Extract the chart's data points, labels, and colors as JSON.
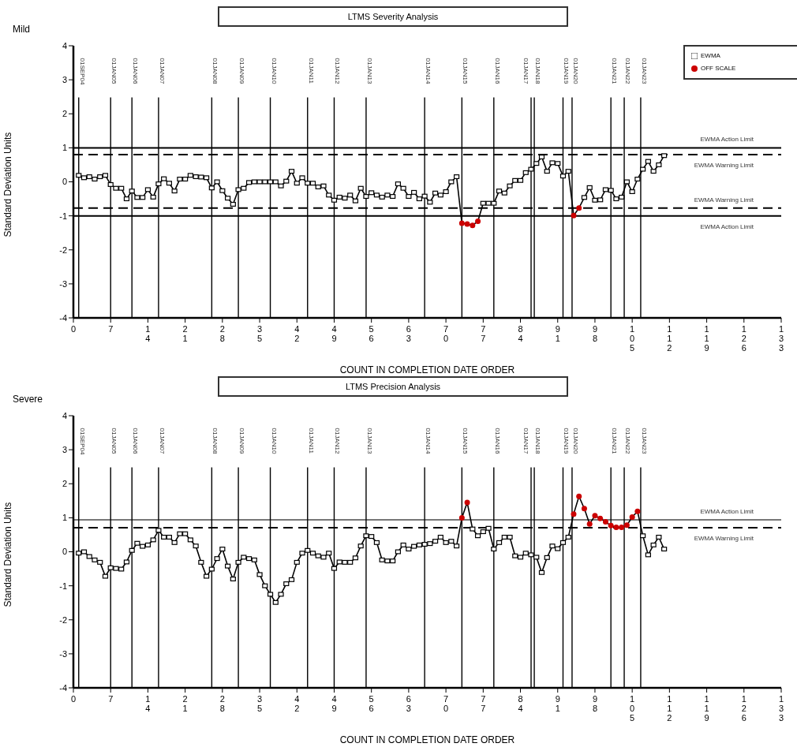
{
  "chart_data": [
    {
      "type": "line",
      "title": "LTMS Severity Analysis",
      "xlabel": "COUNT IN COMPLETION DATE ORDER",
      "ylabel": "Standard Deviation Units",
      "annotations": [
        "Mild"
      ],
      "xlim": [
        0,
        133
      ],
      "xticks": [
        0,
        7,
        14,
        21,
        28,
        35,
        42,
        49,
        56,
        63,
        70,
        77,
        84,
        91,
        98,
        105,
        112,
        119,
        126,
        133
      ],
      "ylim": [
        -4,
        4
      ],
      "yticks": [
        -4,
        -3,
        -2,
        -1,
        0,
        1,
        2,
        3,
        4
      ],
      "legend": "top right",
      "grid": false,
      "series": [
        {
          "name": "EWMA",
          "type": "line",
          "color": "#000000",
          "marker": "square",
          "x": [
            1,
            2,
            3,
            4,
            5,
            6,
            7,
            8,
            9,
            10,
            11,
            12,
            13,
            14,
            15,
            16,
            17,
            18,
            19,
            20,
            21,
            22,
            23,
            24,
            25,
            26,
            27,
            28,
            29,
            30,
            31,
            32,
            33,
            34,
            35,
            36,
            37,
            38,
            39,
            40,
            41,
            42,
            43,
            44,
            45,
            46,
            47,
            48,
            49,
            50,
            51,
            52,
            53,
            54,
            55,
            56,
            57,
            58,
            59,
            60,
            61,
            62,
            63,
            64,
            65,
            66,
            67,
            68,
            69,
            70,
            71,
            72,
            73,
            74,
            75,
            76,
            77,
            78,
            79,
            80,
            81,
            82,
            83,
            84,
            85,
            86,
            87,
            88,
            89,
            90,
            91,
            92,
            93,
            94,
            95,
            96,
            97,
            98,
            99,
            100,
            101,
            102,
            103,
            104,
            105,
            106,
            107,
            108,
            109,
            110,
            111
          ],
          "values": [
            0.19,
            0.12,
            0.15,
            0.08,
            0.15,
            0.19,
            -0.08,
            -0.19,
            -0.19,
            -0.5,
            -0.27,
            -0.46,
            -0.46,
            -0.23,
            -0.45,
            -0.06,
            0.09,
            -0.04,
            -0.27,
            0.08,
            0.08,
            0.19,
            0.15,
            0.14,
            0.12,
            -0.18,
            0,
            -0.26,
            -0.48,
            -0.66,
            -0.23,
            -0.19,
            -0.02,
            0,
            0,
            0,
            0,
            0,
            -0.12,
            0.02,
            0.31,
            -0.04,
            0.12,
            -0.04,
            -0.04,
            -0.15,
            -0.12,
            -0.39,
            -0.54,
            -0.45,
            -0.48,
            -0.39,
            -0.56,
            -0.19,
            -0.43,
            -0.32,
            -0.39,
            -0.45,
            -0.39,
            -0.43,
            -0.06,
            -0.19,
            -0.43,
            -0.31,
            -0.5,
            -0.42,
            -0.6,
            -0.33,
            -0.39,
            -0.29,
            0,
            0.15,
            -1.22,
            -1.24,
            -1.28,
            -1.16,
            -0.63,
            -0.63,
            -0.63,
            -0.27,
            -0.33,
            -0.12,
            0.04,
            0.04,
            0.27,
            0.37,
            0.54,
            0.73,
            0.31,
            0.56,
            0.54,
            0.17,
            0.31,
            -0.99,
            -0.77,
            -0.46,
            -0.17,
            -0.54,
            -0.53,
            -0.23,
            -0.25,
            -0.5,
            -0.45,
            0,
            -0.29,
            0.08,
            0.37,
            0.6,
            0.31,
            0.5,
            0.77
          ]
        },
        {
          "name": "OFF SCALE",
          "type": "scatter",
          "color": "#cc0000",
          "marker": "circle",
          "x": [
            73,
            74,
            75,
            76,
            94,
            95
          ],
          "values": [
            -1.22,
            -1.24,
            -1.28,
            -1.16,
            -0.99,
            -0.77
          ]
        }
      ],
      "ref_lines": [
        {
          "axis": "y",
          "value": 1,
          "label": "EWMA Action Limit",
          "line_style": "solid",
          "color": "#000000"
        },
        {
          "axis": "y",
          "value": 0.8,
          "label": "EWMA Warning Limit",
          "line_style": "dashed",
          "color": "#000000"
        },
        {
          "axis": "y",
          "value": -0.77,
          "label": "EWMA Warning Limit",
          "line_style": "dashed",
          "color": "#000000"
        },
        {
          "axis": "y",
          "value": -1,
          "label": "EWMA Action Limit",
          "line_style": "solid",
          "color": "#000000"
        },
        {
          "axis": "x",
          "value": 1,
          "label": "01SEP04"
        },
        {
          "axis": "x",
          "value": 7,
          "label": "01JAN05"
        },
        {
          "axis": "x",
          "value": 11,
          "label": "01JAN06"
        },
        {
          "axis": "x",
          "value": 16,
          "label": "01JAN07"
        },
        {
          "axis": "x",
          "value": 26,
          "label": "01JAN08"
        },
        {
          "axis": "x",
          "value": 31,
          "label": "01JAN09"
        },
        {
          "axis": "x",
          "value": 37,
          "label": "01JAN10"
        },
        {
          "axis": "x",
          "value": 44,
          "label": "01JAN11"
        },
        {
          "axis": "x",
          "value": 49,
          "label": "01JAN12"
        },
        {
          "axis": "x",
          "value": 55,
          "label": "01JAN13"
        },
        {
          "axis": "x",
          "value": 66,
          "label": "01JAN14"
        },
        {
          "axis": "x",
          "value": 73,
          "label": "01JAN15"
        },
        {
          "axis": "x",
          "value": 79,
          "label": "01JAN16"
        },
        {
          "axis": "x",
          "value": 86,
          "label": "01JAN17"
        },
        {
          "axis": "x",
          "value": 86.6,
          "label": "01JAN18"
        },
        {
          "axis": "x",
          "value": 92,
          "label": "01JAN19"
        },
        {
          "axis": "x",
          "value": 93.7,
          "label": "01JAN20"
        },
        {
          "axis": "x",
          "value": 101,
          "label": "01JAN21"
        },
        {
          "axis": "x",
          "value": 103.5,
          "label": "01JAN22"
        },
        {
          "axis": "x",
          "value": 106.6,
          "label": "01JAN23"
        }
      ]
    },
    {
      "type": "line",
      "title": "LTMS Precision Analysis",
      "xlabel": "COUNT IN COMPLETION DATE ORDER",
      "ylabel": "Standard Deviation Units",
      "annotations": [
        "Severe"
      ],
      "xlim": [
        0,
        133
      ],
      "xticks": [
        0,
        7,
        14,
        21,
        28,
        35,
        42,
        49,
        56,
        63,
        70,
        77,
        84,
        91,
        98,
        105,
        112,
        119,
        126,
        133
      ],
      "ylim": [
        -4,
        4
      ],
      "yticks": [
        -4,
        -3,
        -2,
        -1,
        0,
        1,
        2,
        3,
        4
      ],
      "grid": false,
      "series": [
        {
          "type": "line",
          "color": "#000000",
          "marker": "square",
          "x": [
            1,
            2,
            3,
            4,
            5,
            6,
            7,
            8,
            9,
            10,
            11,
            12,
            13,
            14,
            15,
            16,
            17,
            18,
            19,
            20,
            21,
            22,
            23,
            24,
            25,
            26,
            27,
            28,
            29,
            30,
            31,
            32,
            33,
            34,
            35,
            36,
            37,
            38,
            39,
            40,
            41,
            42,
            43,
            44,
            45,
            46,
            47,
            48,
            49,
            50,
            51,
            52,
            53,
            54,
            55,
            56,
            57,
            58,
            59,
            60,
            61,
            62,
            63,
            64,
            65,
            66,
            67,
            68,
            69,
            70,
            71,
            72,
            73,
            74,
            75,
            76,
            77,
            78,
            79,
            80,
            81,
            82,
            83,
            84,
            85,
            86,
            87,
            88,
            89,
            90,
            91,
            92,
            93,
            94,
            95,
            96,
            97,
            98,
            99,
            100,
            101,
            102,
            103,
            104,
            105,
            106,
            107,
            108,
            109,
            110,
            111
          ],
          "values": [
            -0.04,
            0,
            -0.14,
            -0.24,
            -0.31,
            -0.72,
            -0.47,
            -0.49,
            -0.51,
            -0.3,
            0.04,
            0.25,
            0.16,
            0.2,
            0.35,
            0.63,
            0.43,
            0.43,
            0.27,
            0.53,
            0.53,
            0.35,
            0.17,
            -0.31,
            -0.72,
            -0.51,
            -0.2,
            0.08,
            -0.42,
            -0.8,
            -0.31,
            -0.16,
            -0.2,
            -0.24,
            -0.67,
            -1,
            -1.25,
            -1.49,
            -1.25,
            -0.94,
            -0.82,
            -0.31,
            -0.04,
            0.04,
            -0.04,
            -0.12,
            -0.16,
            -0.04,
            -0.49,
            -0.3,
            -0.31,
            -0.31,
            -0.18,
            0.17,
            0.47,
            0.45,
            0.27,
            -0.24,
            -0.27,
            -0.27,
            0,
            0.2,
            0.08,
            0.16,
            0.2,
            0.22,
            0.24,
            0.31,
            0.43,
            0.27,
            0.31,
            0.17,
            1,
            1.45,
            0.67,
            0.47,
            0.59,
            0.69,
            0.08,
            0.27,
            0.43,
            0.43,
            -0.12,
            -0.16,
            -0.04,
            -0.09,
            -0.16,
            -0.61,
            -0.17,
            0.17,
            0.09,
            0.27,
            0.43,
            1.11,
            1.63,
            1.27,
            0.82,
            1.06,
            0.98,
            0.88,
            0.77,
            0.72,
            0.72,
            0.78,
            1.02,
            1.19,
            0.47,
            -0.09,
            0.2,
            0.43,
            0.08
          ]
        },
        {
          "type": "scatter",
          "color": "#cc0000",
          "marker": "circle",
          "x": [
            73,
            74,
            94,
            95,
            96,
            97,
            98,
            99,
            100,
            101,
            102,
            103,
            104,
            105,
            106
          ],
          "values": [
            1,
            1.45,
            1.11,
            1.63,
            1.27,
            0.82,
            1.06,
            0.98,
            0.88,
            0.77,
            0.72,
            0.72,
            0.78,
            1.02,
            1.19
          ]
        }
      ],
      "ref_lines": [
        {
          "axis": "y",
          "value": 0.94,
          "label": "EWMA Action Limit",
          "line_style": "solid",
          "color": "#777777"
        },
        {
          "axis": "y",
          "value": 0.71,
          "label": "EWMA Warning Limit",
          "line_style": "dashed",
          "color": "#000000"
        },
        {
          "axis": "x",
          "value": 1,
          "label": "01SEP04"
        },
        {
          "axis": "x",
          "value": 7,
          "label": "01JAN05"
        },
        {
          "axis": "x",
          "value": 11,
          "label": "01JAN06"
        },
        {
          "axis": "x",
          "value": 16,
          "label": "01JAN07"
        },
        {
          "axis": "x",
          "value": 26,
          "label": "01JAN08"
        },
        {
          "axis": "x",
          "value": 31,
          "label": "01JAN09"
        },
        {
          "axis": "x",
          "value": 37,
          "label": "01JAN10"
        },
        {
          "axis": "x",
          "value": 44,
          "label": "01JAN11"
        },
        {
          "axis": "x",
          "value": 49,
          "label": "01JAN12"
        },
        {
          "axis": "x",
          "value": 55,
          "label": "01JAN13"
        },
        {
          "axis": "x",
          "value": 66,
          "label": "01JAN14"
        },
        {
          "axis": "x",
          "value": 73,
          "label": "01JAN15"
        },
        {
          "axis": "x",
          "value": 79,
          "label": "01JAN16"
        },
        {
          "axis": "x",
          "value": 86,
          "label": "01JAN17"
        },
        {
          "axis": "x",
          "value": 86.6,
          "label": "01JAN18"
        },
        {
          "axis": "x",
          "value": 92,
          "label": "01JAN19"
        },
        {
          "axis": "x",
          "value": 93.7,
          "label": "01JAN20"
        },
        {
          "axis": "x",
          "value": 101,
          "label": "01JAN21"
        },
        {
          "axis": "x",
          "value": 103.5,
          "label": "01JAN22"
        },
        {
          "axis": "x",
          "value": 106.6,
          "label": "01JAN23"
        }
      ]
    }
  ]
}
